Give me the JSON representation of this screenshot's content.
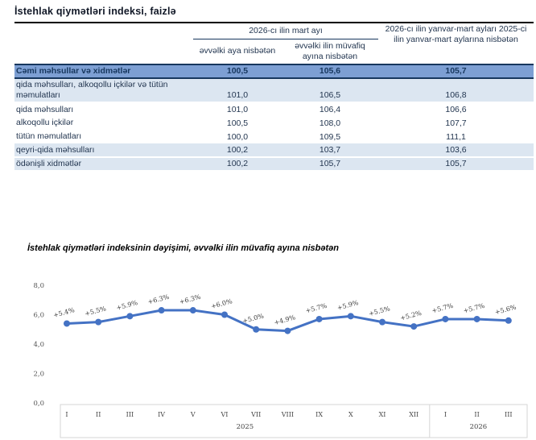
{
  "title": "İstehlak qiymətləri indeksi, faizlə",
  "table": {
    "group_header": "2026-cı ilin mart ayı",
    "sub_headers": [
      "əvvəlki aya nisbətən",
      "əvvəlki ilin müvafiq ayına nisbətən"
    ],
    "period_header": "2026-cı ilin yanvar-mart ayları 2025-ci ilin yanvar-mart aylarına nisbətən",
    "rows": [
      {
        "label": "Cəmi məhsullar və xidmətlər",
        "values": [
          "100,5",
          "105,6",
          "105,7"
        ]
      },
      {
        "label": "qida məhsulları, alkoqollu içkilər və tütün məmulatları",
        "values": [
          "101,0",
          "106,5",
          "106,8"
        ]
      },
      {
        "label": "qida məhsulları",
        "values": [
          "101,0",
          "106,4",
          "106,6"
        ]
      },
      {
        "label": "alkoqollu içkilər",
        "values": [
          "100,5",
          "108,0",
          "107,7"
        ]
      },
      {
        "label": "tütün məmulatları",
        "values": [
          "100,0",
          "109,5",
          "111,1"
        ]
      },
      {
        "label": "qeyri-qida məhsulları",
        "values": [
          "100,2",
          "103,7",
          "103,6"
        ]
      },
      {
        "label": "ödənişli xidmətlər",
        "values": [
          "100,2",
          "105,7",
          "105,7"
        ]
      }
    ]
  },
  "chart_title": "İstehlak qiymətləri indeksinin dəyişimi, əvvəlki ilin müvafiq ayına nisbətən",
  "chart_data": {
    "type": "line",
    "title": "İstehlak qiymətləri indeksinin dəyişimi, əvvəlki ilin müvafiq ayına nisbətən",
    "x": [
      "I",
      "II",
      "III",
      "IV",
      "V",
      "VI",
      "VII",
      "VIII",
      "IX",
      "X",
      "XI",
      "XII",
      "I",
      "II",
      "III"
    ],
    "year_groups": [
      {
        "label": "2025",
        "count": 12
      },
      {
        "label": "2026",
        "count": 3
      }
    ],
    "values": [
      5.4,
      5.5,
      5.9,
      6.3,
      6.3,
      6.0,
      5.0,
      4.9,
      5.7,
      5.9,
      5.5,
      5.2,
      5.7,
      5.7,
      5.6
    ],
    "point_labels": [
      "+5.4%",
      "+5.5%",
      "+5.9%",
      "+6.3%",
      "+6.3%",
      "+6.0%",
      "+5.0%",
      "+4.9%",
      "+5.7%",
      "+5.9%",
      "+5.5%",
      "+5.2%",
      "+5.7%",
      "+5.7%",
      "+5.6%"
    ],
    "y_ticks": [
      "0,0",
      "2,0",
      "4,0",
      "6,0",
      "8,0"
    ],
    "ylim": [
      0,
      8
    ],
    "grid": false,
    "legend": false,
    "line_color": "#4472C4"
  },
  "colors": {
    "series_line": "#4472C4",
    "total_row_bg": "#7D9FD3",
    "shaded_row_bg": "#DCE6F1",
    "dark_navy": "#17375E"
  }
}
